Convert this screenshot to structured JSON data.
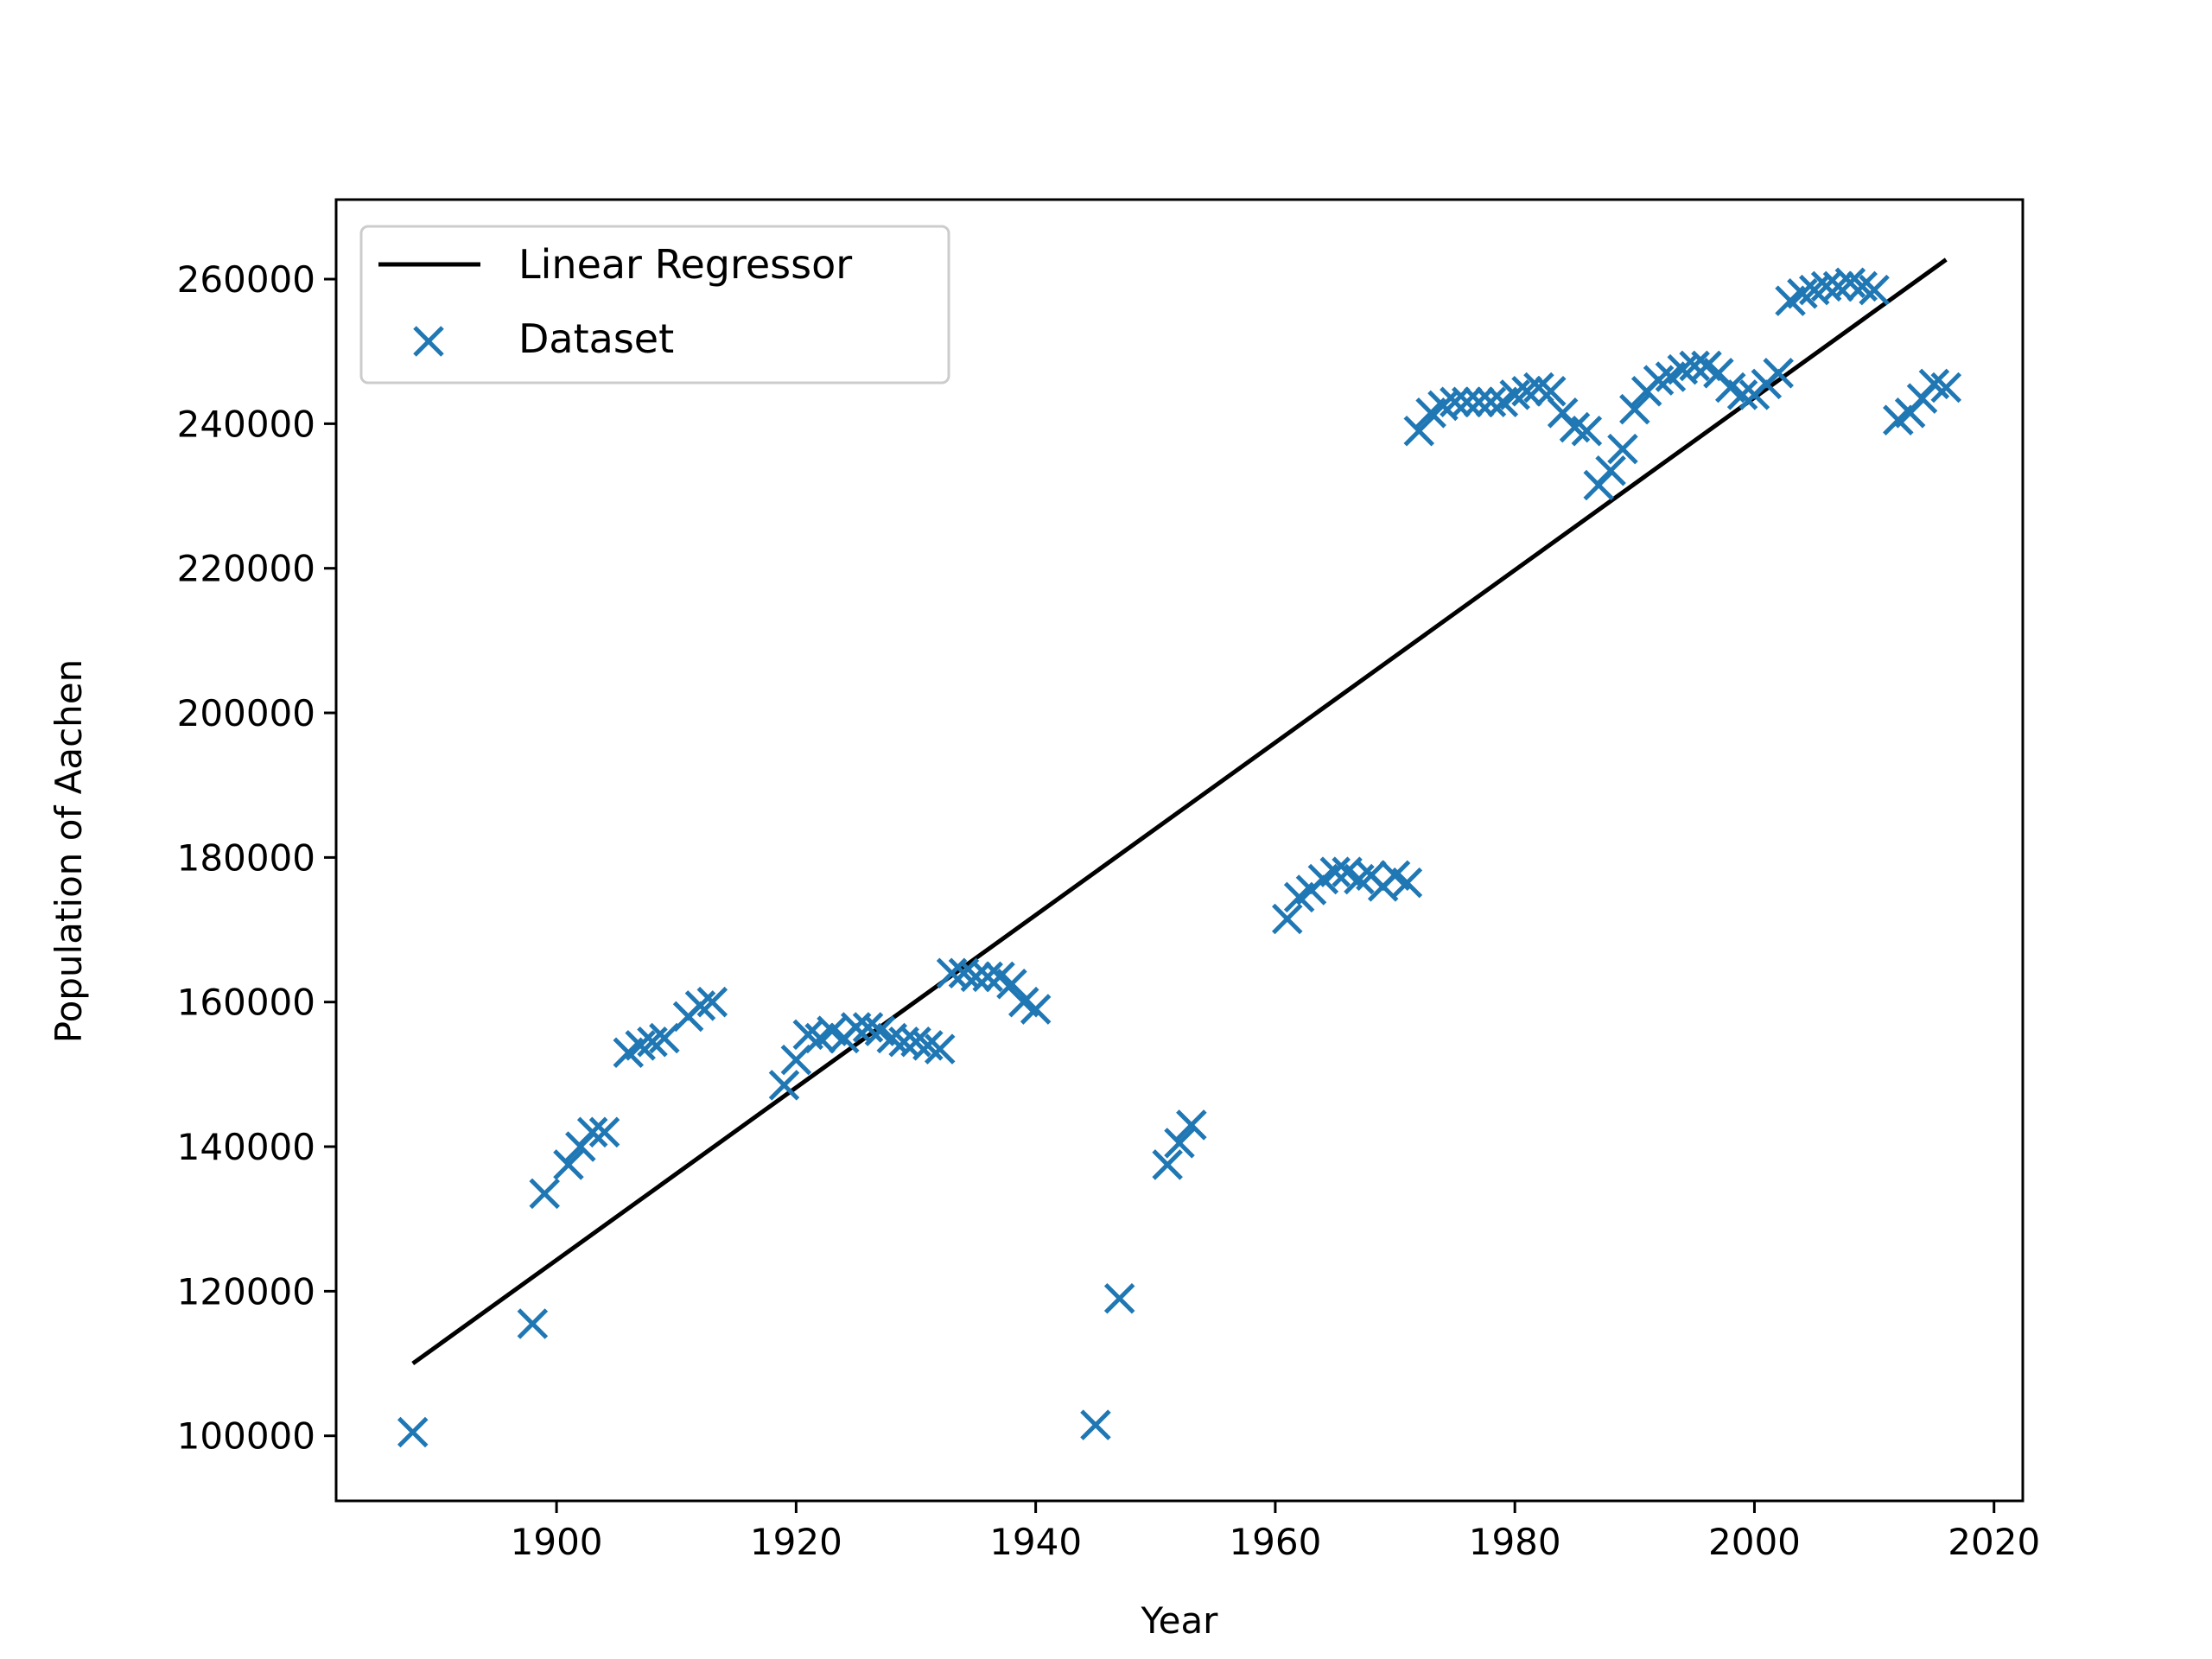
{
  "chart_data": {
    "type": "scatter",
    "xlabel": "Year",
    "ylabel": "Population of Aachen",
    "xlim": [
      1881.6,
      2022.4
    ],
    "ylim": [
      91000,
      271000
    ],
    "x_ticks": [
      "1900",
      "1920",
      "1940",
      "1960",
      "1980",
      "2000",
      "2020"
    ],
    "y_ticks": [
      "100000",
      "120000",
      "140000",
      "160000",
      "180000",
      "200000",
      "220000",
      "240000",
      "260000"
    ],
    "legend": {
      "position": "top-left"
    },
    "grid": false,
    "series": [
      {
        "name": "Linear Regressor",
        "kind": "line",
        "color": "#000000",
        "x": [
          1888,
          2016
        ],
        "y": [
          110000,
          262700
        ]
      },
      {
        "name": "Dataset",
        "kind": "scatter",
        "marker": "x",
        "color": "#1f77b4",
        "x": [
          1888,
          1898,
          1899,
          1901,
          1902,
          1903,
          1904,
          1906,
          1907,
          1908,
          1909,
          1911,
          1912,
          1913,
          1919,
          1920,
          1921,
          1922,
          1923,
          1924,
          1925,
          1926,
          1927,
          1928,
          1929,
          1930,
          1931,
          1932,
          1933,
          1934,
          1935,
          1936,
          1937,
          1938,
          1939,
          1940,
          1945,
          1947,
          1951,
          1952,
          1953,
          1961,
          1962,
          1963,
          1964,
          1965,
          1966,
          1967,
          1968,
          1969,
          1970,
          1971,
          1972,
          1973,
          1974,
          1975,
          1976,
          1977,
          1978,
          1979,
          1980,
          1981,
          1982,
          1983,
          1984,
          1985,
          1986,
          1987,
          1988,
          1989,
          1990,
          1991,
          1992,
          1993,
          1994,
          1995,
          1996,
          1997,
          1998,
          1999,
          2000,
          2001,
          2002,
          2003,
          2004,
          2005,
          2006,
          2007,
          2008,
          2009,
          2010,
          2012,
          2013,
          2014,
          2015,
          2016
        ],
        "y": [
          100500,
          115500,
          133500,
          137500,
          140000,
          142000,
          142000,
          153000,
          154000,
          154500,
          155000,
          158000,
          159500,
          160000,
          148500,
          152000,
          155500,
          155000,
          156000,
          155000,
          156500,
          156500,
          156000,
          155000,
          154500,
          154500,
          154000,
          153500,
          164000,
          164000,
          163500,
          163500,
          163500,
          162500,
          160000,
          159000,
          101500,
          119000,
          137500,
          140500,
          143000,
          171500,
          174500,
          175500,
          177000,
          178000,
          178000,
          177000,
          177500,
          176000,
          177500,
          176500,
          239000,
          241500,
          242500,
          243000,
          243000,
          243000,
          243000,
          243000,
          244000,
          244500,
          245000,
          244500,
          241500,
          239500,
          239000,
          231500,
          233500,
          236500,
          242000,
          244500,
          246000,
          246500,
          247500,
          248000,
          248000,
          247000,
          245000,
          244000,
          244000,
          245500,
          247000,
          257000,
          258000,
          258500,
          259000,
          259000,
          259500,
          259000,
          258500,
          240500,
          241500,
          243500,
          245500,
          245000
        ]
      }
    ]
  }
}
